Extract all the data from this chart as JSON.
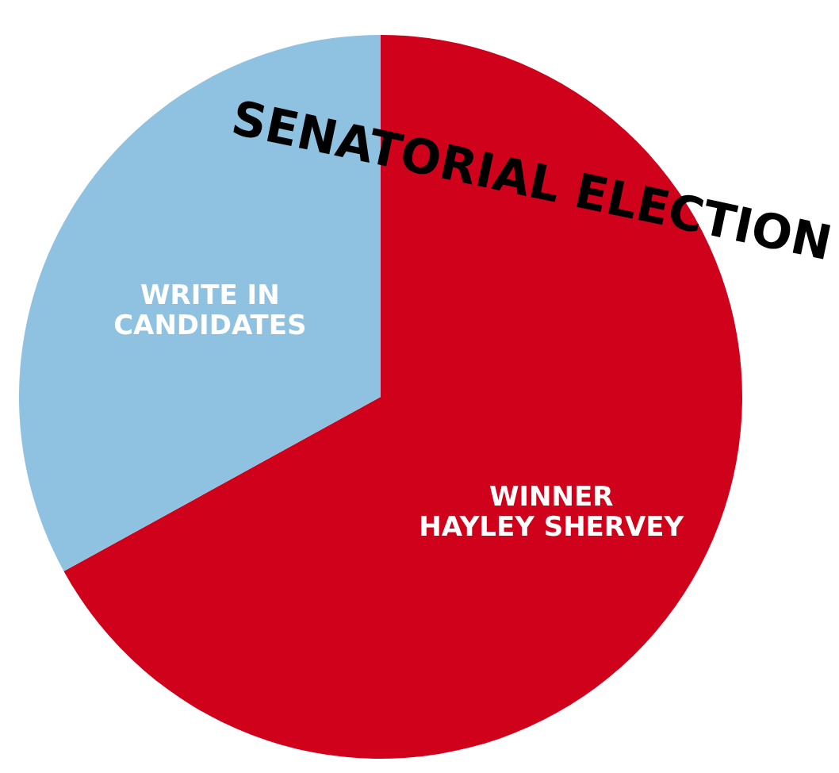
{
  "chart_data": {
    "type": "pie",
    "title": "SENATORIAL ELECTION",
    "categories": [
      "WINNER\nHAYLEY SHERVEY",
      "WRITE IN\nCANDIDATES"
    ],
    "values": [
      67,
      33
    ],
    "colors": [
      "#d0021b",
      "#8fc1e0"
    ]
  }
}
